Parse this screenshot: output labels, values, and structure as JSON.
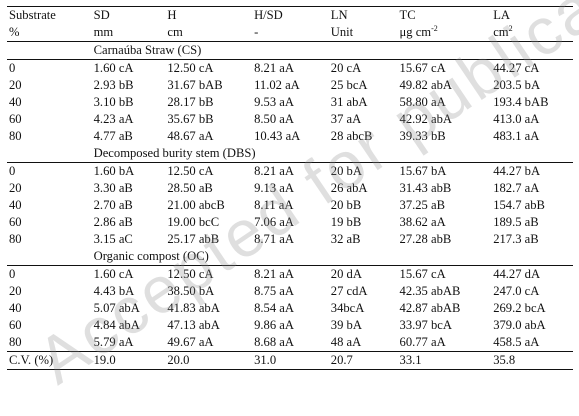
{
  "header": {
    "row1": [
      "Substrate",
      "SD",
      "H",
      "H/SD",
      "LN",
      "TC",
      "LA"
    ],
    "row2": [
      {
        "text": "%"
      },
      {
        "text": "mm"
      },
      {
        "text": "cm"
      },
      {
        "text": "-"
      },
      {
        "text": "Unit"
      },
      {
        "text": "μg cm",
        "sup": "-2"
      },
      {
        "text": "cm",
        "sup": "2"
      }
    ]
  },
  "sections": [
    {
      "title": "Carnaúba Straw (CS)",
      "rows": [
        [
          "0",
          "1.60 cA",
          "12.50 cA",
          "8.21 aA",
          "20 cA",
          "15.67 cA",
          "44.27 cA"
        ],
        [
          "20",
          "2.93 bB",
          "31.67 bAB",
          "11.02 aA",
          "25 bcA",
          "49.82 abA",
          "203.5 bA"
        ],
        [
          "40",
          "3.10 bB",
          "28.17 bB",
          "9.53 aA",
          "31 abA",
          "58.80 aA",
          "193.4 bAB"
        ],
        [
          "60",
          "4.23 aA",
          "35.67 bB",
          "8.50 aA",
          "37 aA",
          "42.92 abA",
          "413.0 aA"
        ],
        [
          "80",
          "4.77 aB",
          "48.67 aA",
          "10.43 aA",
          "28 abcB",
          "39.33 bB",
          "483.1 aA"
        ]
      ]
    },
    {
      "title": "Decomposed burity stem (DBS)",
      "rows": [
        [
          "0",
          "1.60 bA",
          "12.50 cA",
          "8.21 aA",
          "20 bA",
          "15.67 bA",
          "44.27 bA"
        ],
        [
          "20",
          "3.30 aB",
          "28.50 aB",
          "9.13 aA",
          "26 abA",
          "31.43 abB",
          "182.7 aA"
        ],
        [
          "40",
          "2.70 aB",
          "21.00 abcB",
          "8.11 aA",
          "20 bB",
          "37.25 aB",
          "154.7 abB"
        ],
        [
          "60",
          "2.86 aB",
          "19.00 bcC",
          "7.06 aA",
          "19 bB",
          "38.62 aA",
          "189.5 aB"
        ],
        [
          "80",
          "3.15 aC",
          "25.17 abB",
          "8.71 aA",
          "32 aB",
          "27.28 abB",
          "217.3 aB"
        ]
      ]
    },
    {
      "title": "Organic compost (OC)",
      "rows": [
        [
          "0",
          "1.60 cA",
          "12.50 cA",
          "8.21 aA",
          "20 dA",
          "15.67 cA",
          "44.27 dA"
        ],
        [
          "20",
          "4.43 bA",
          "38.50 bA",
          "8.75 aA",
          "27 cdA",
          "42.35 abAB",
          "247.0 cA"
        ],
        [
          "40",
          "5.07 abA",
          "41.83 abA",
          "8.54 aA",
          "34bcA",
          "42.87 abAB",
          "269.2 bcA"
        ],
        [
          "60",
          "4.84 abA",
          "47.13 abA",
          "9.86 aA",
          "39 bA",
          "33.97 bcA",
          "379.0 abA"
        ],
        [
          "80",
          "5.79 aA",
          "49.67 aA",
          "8.68 aA",
          "48 aA",
          "60.77 aA",
          "458.5 aA"
        ]
      ]
    }
  ],
  "cv_row": [
    "C.V. (%)",
    "19.0",
    "20.0",
    "31.0",
    "20.7",
    "33.1",
    "35.8"
  ],
  "watermark": "Accepted for publication"
}
